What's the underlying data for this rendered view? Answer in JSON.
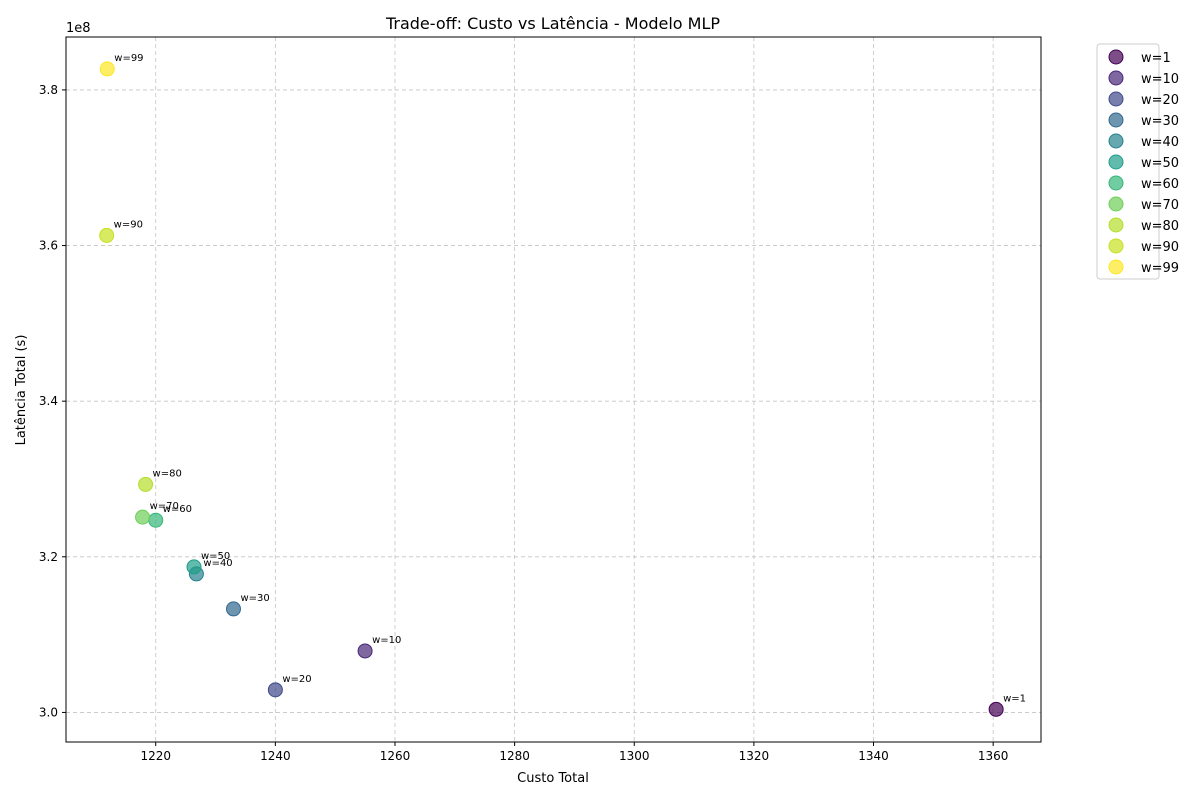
{
  "chart_data": {
    "type": "scatter",
    "title": "Trade-off: Custo vs Latência - Modelo MLP",
    "xlabel": "Custo Total",
    "ylabel": "Latência Total (s)",
    "y_multiplier_label": "1e8",
    "xlim": [
      1205,
      1368
    ],
    "ylim": [
      2.962,
      3.868
    ],
    "x_ticks": [
      1220,
      1240,
      1260,
      1280,
      1300,
      1320,
      1340,
      1360
    ],
    "x_tick_labels": [
      "1220",
      "1240",
      "1260",
      "1280",
      "1300",
      "1320",
      "1340",
      "1360"
    ],
    "y_ticks": [
      3.0,
      3.2,
      3.4,
      3.6,
      3.8
    ],
    "y_tick_labels": [
      "3.0",
      "3.2",
      "3.4",
      "3.6",
      "3.8"
    ],
    "grid": true,
    "grid_style": "dashed",
    "legend_position": "outside-top-right",
    "series": [
      {
        "name": "w=1",
        "annotation": "w=1",
        "color": "#440154",
        "x": 1360.5,
        "y": 3.004
      },
      {
        "name": "w=10",
        "annotation": "w=10",
        "color": "#482878",
        "x": 1255.0,
        "y": 3.079
      },
      {
        "name": "w=20",
        "annotation": "w=20",
        "color": "#3e4989",
        "x": 1240.0,
        "y": 3.029
      },
      {
        "name": "w=30",
        "annotation": "w=30",
        "color": "#31688e",
        "x": 1233.0,
        "y": 3.133
      },
      {
        "name": "w=40",
        "annotation": "w=40",
        "color": "#26828e",
        "x": 1226.8,
        "y": 3.178
      },
      {
        "name": "w=50",
        "annotation": "w=50",
        "color": "#1f9e89",
        "x": 1226.4,
        "y": 3.187
      },
      {
        "name": "w=60",
        "annotation": "w=60",
        "color": "#35b779",
        "x": 1220.0,
        "y": 3.247
      },
      {
        "name": "w=70",
        "annotation": "w=70",
        "color": "#6ece58",
        "x": 1217.8,
        "y": 3.251
      },
      {
        "name": "w=80",
        "annotation": "w=80",
        "color": "#b5de2b",
        "x": 1218.3,
        "y": 3.293
      },
      {
        "name": "w=90",
        "annotation": "w=90",
        "color": "#c8e020",
        "x": 1211.8,
        "y": 3.613
      },
      {
        "name": "w=99",
        "annotation": "w=99",
        "color": "#fde725",
        "x": 1211.9,
        "y": 3.827
      }
    ]
  }
}
